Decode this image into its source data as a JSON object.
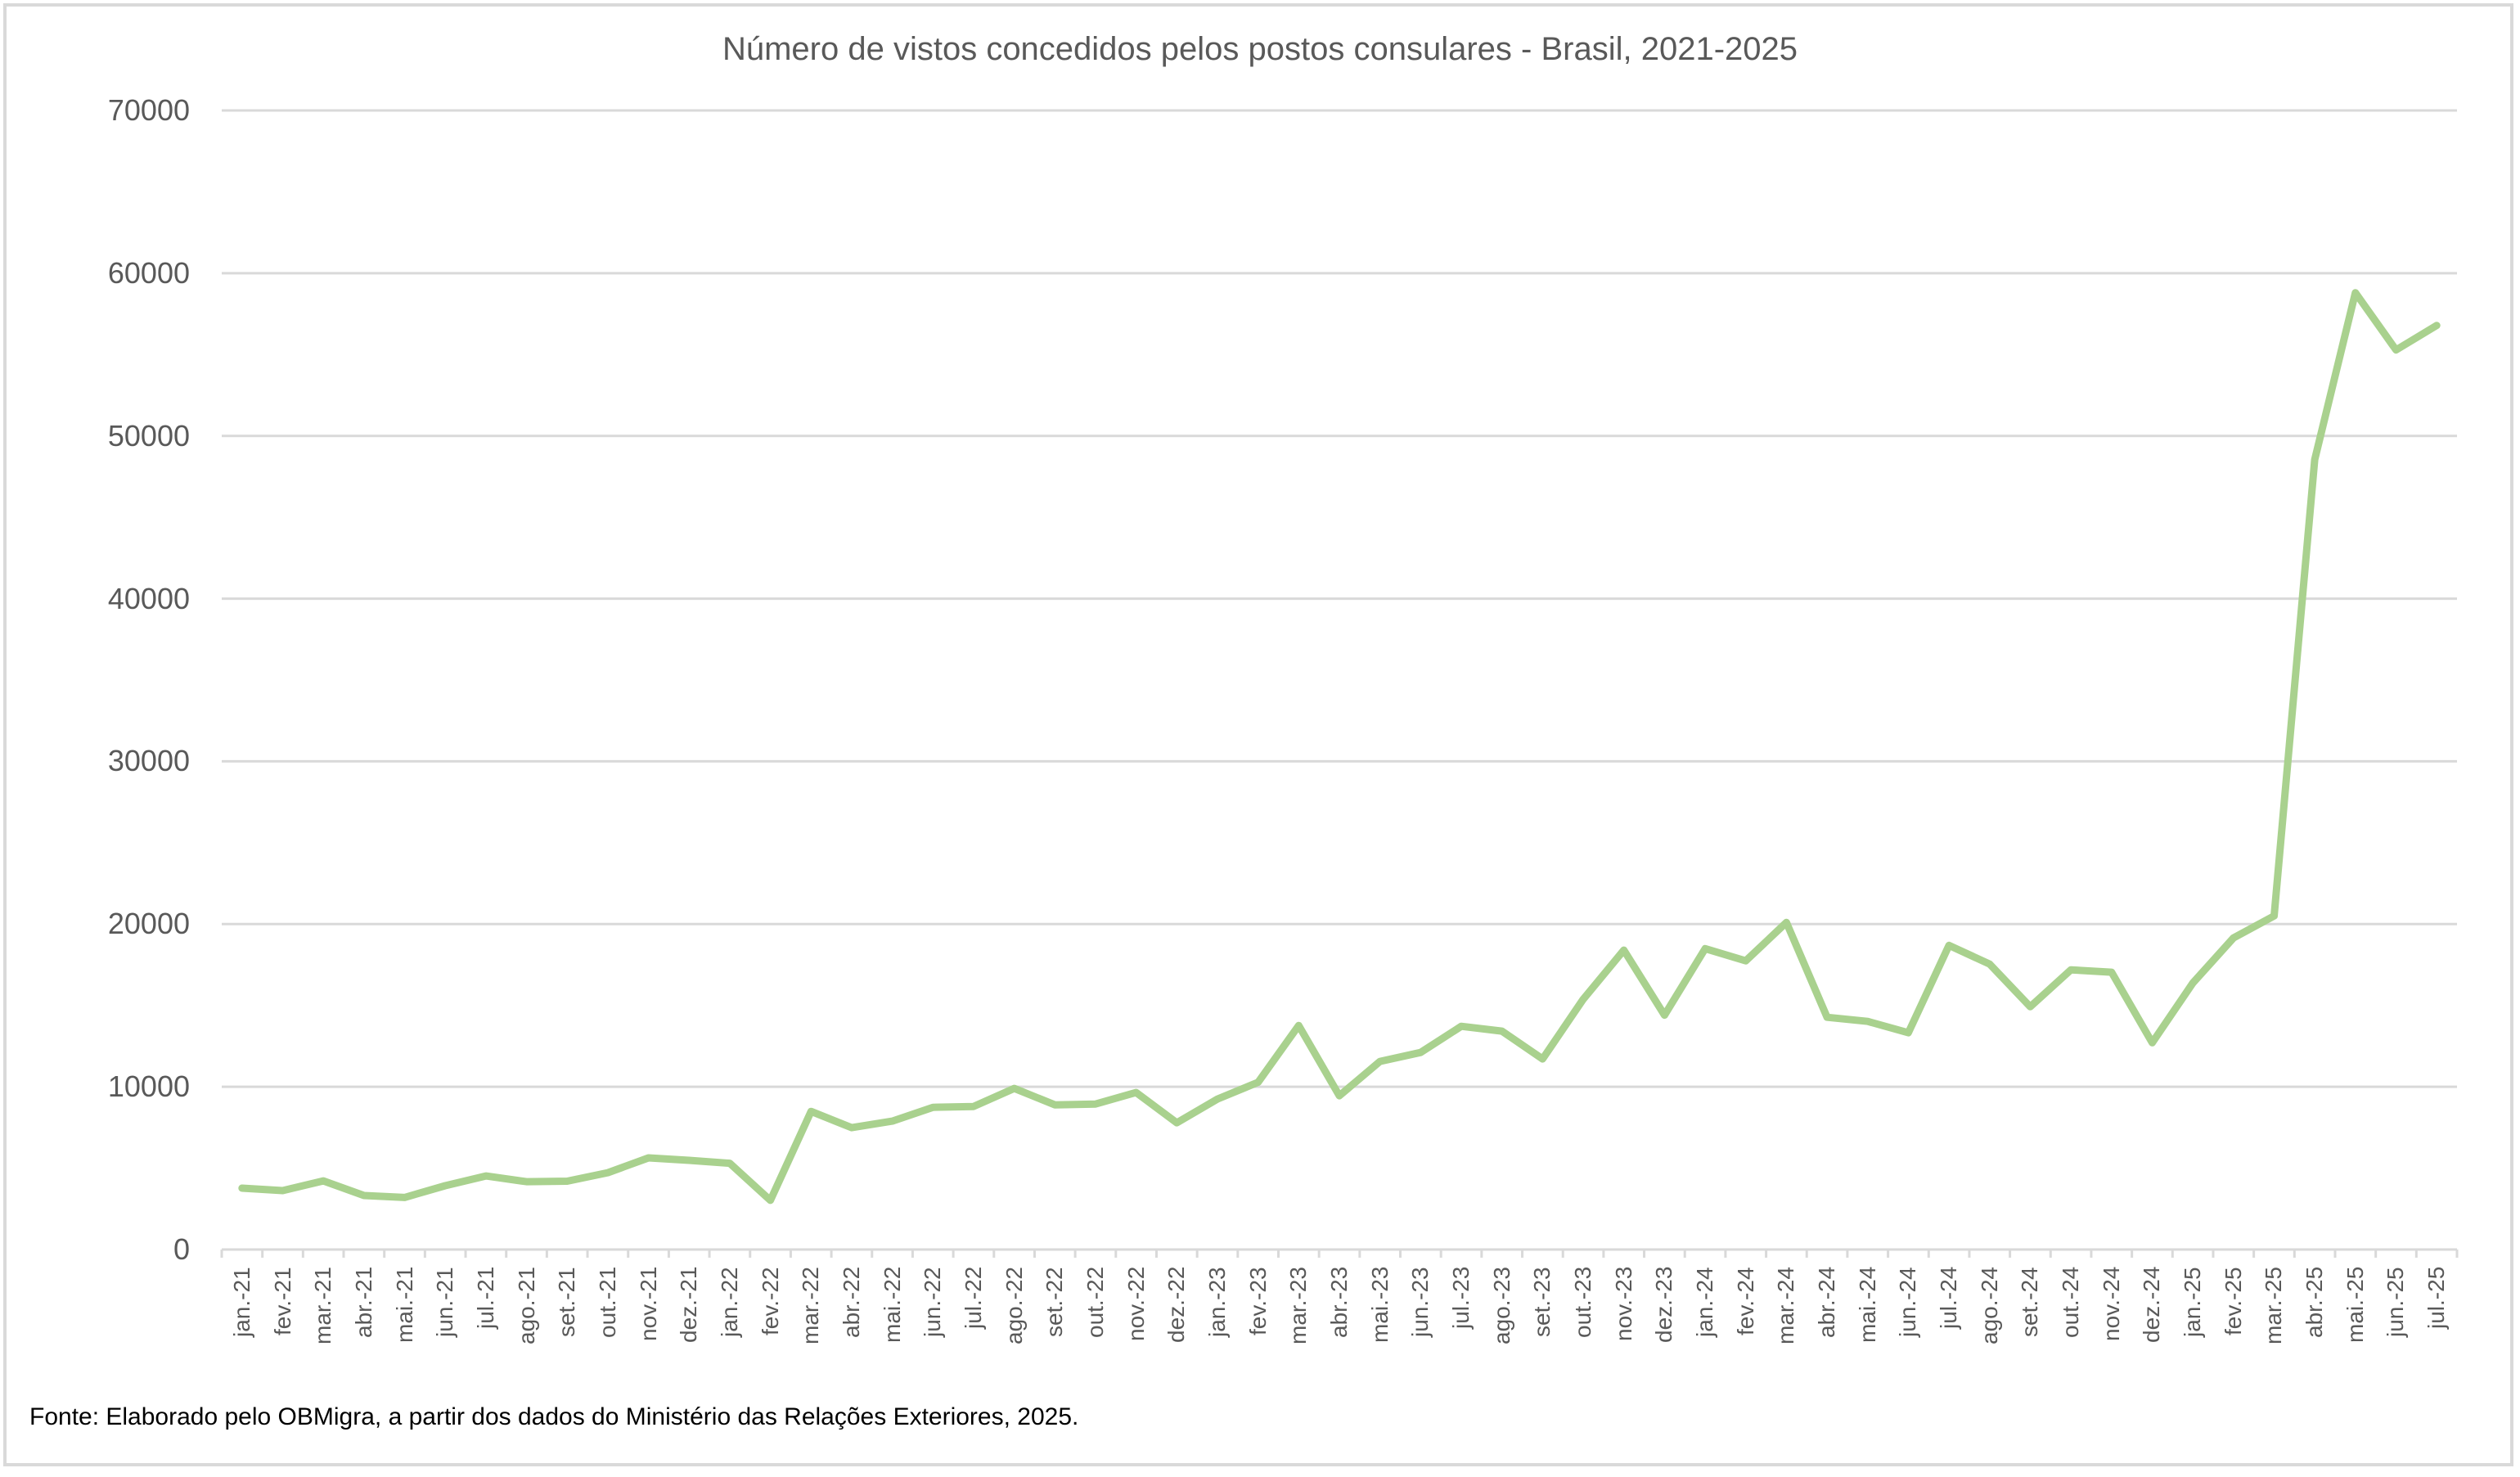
{
  "chart_data": {
    "type": "line",
    "title": "Número de vistos concedidos pelos postos consulares - Brasil, 2021-2025",
    "xlabel": "",
    "ylabel": "",
    "ylim": [
      0,
      70000
    ],
    "yticks": [
      0,
      10000,
      20000,
      30000,
      40000,
      50000,
      60000,
      70000
    ],
    "grid": true,
    "legend": null,
    "line_color": "#A9D18E",
    "categories": [
      "jan.-21",
      "fev.-21",
      "mar.-21",
      "abr.-21",
      "mai.-21",
      "jun.-21",
      "jul.-21",
      "ago.-21",
      "set.-21",
      "out.-21",
      "nov.-21",
      "dez.-21",
      "jan.-22",
      "fev.-22",
      "mar.-22",
      "abr.-22",
      "mai.-22",
      "jun.-22",
      "jul.-22",
      "ago.-22",
      "set.-22",
      "out.-22",
      "nov.-22",
      "dez.-22",
      "jan.-23",
      "fev.-23",
      "mar.-23",
      "abr.-23",
      "mai.-23",
      "jun.-23",
      "jul.-23",
      "ago.-23",
      "set.-23",
      "out.-23",
      "nov.-23",
      "dez.-23",
      "jan.-24",
      "fev.-24",
      "mar.-24",
      "abr.-24",
      "mai.-24",
      "jun.-24",
      "jul.-24",
      "ago.-24",
      "set.-24",
      "out.-24",
      "nov.-24",
      "dez.-24",
      "jan.-25",
      "fev.-25",
      "mar.-25",
      "abr.-25",
      "mai.-25",
      "jun.-25",
      "jul.-25"
    ],
    "series": [
      {
        "name": "Vistos concedidos",
        "values": [
          3770,
          3620,
          4220,
          3320,
          3200,
          3920,
          4520,
          4170,
          4200,
          4720,
          5630,
          5480,
          5300,
          3020,
          8490,
          7490,
          7890,
          8740,
          8790,
          9900,
          8890,
          8940,
          9650,
          7790,
          9250,
          10280,
          13770,
          9450,
          11560,
          12110,
          13720,
          13420,
          11710,
          15380,
          18400,
          14400,
          18490,
          17740,
          20100,
          14270,
          14020,
          13320,
          18690,
          17540,
          14920,
          17190,
          17040,
          12710,
          16380,
          19150,
          20500,
          48540,
          58800,
          55280,
          56790
        ]
      }
    ],
    "footnote": "Fonte: Elaborado pelo OBMigra, a partir dos dados do Ministério das Relações Exteriores, 2025."
  },
  "y_labels": [
    "70000",
    "60000",
    "50000",
    "40000",
    "30000",
    "20000",
    "10000",
    "0"
  ]
}
